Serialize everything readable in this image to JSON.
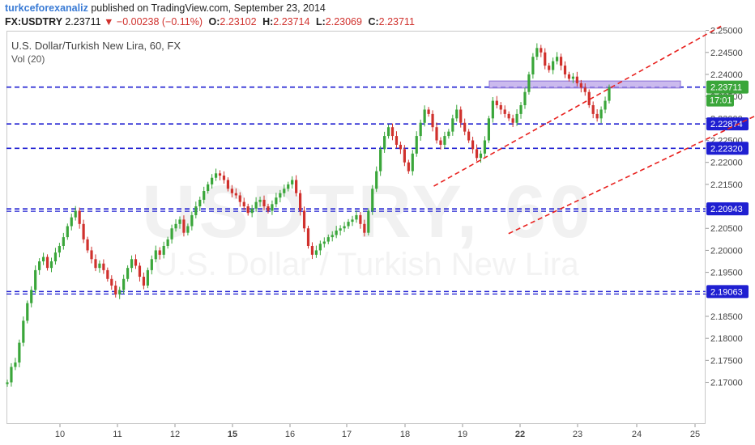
{
  "header": {
    "author": "turkceforexanaliz",
    "published": "published on TradingView.com, September 23, 2014",
    "symbol": "FX:USDTRY",
    "price": "2.23711",
    "change": "▼ −0.00238 (−0.11%)",
    "o_label": "O:",
    "o_value": "2.23102",
    "h_label": "H:",
    "h_value": "2.23714",
    "l_label": "L:",
    "l_value": "2.23069",
    "c_label": "C:",
    "c_value": "2.23711"
  },
  "legend": {
    "title": "U.S. Dollar/Turkish New Lira, 60, FX",
    "volume": "Vol (20)"
  },
  "watermark": {
    "main": "USDTRY, 60",
    "sub": "U.S. Dollar / Turkish New Lira"
  },
  "colors": {
    "up": "#3aa63a",
    "down": "#d0312d",
    "hline": "#1f1fd1",
    "trend": "#e8221f",
    "zone": "#b9a3e8",
    "price_badge": "#3aa63a"
  },
  "chart_data": {
    "type": "candlestick",
    "ylim": [
      2.1655,
      2.2525
    ],
    "y_ticks": [
      "2.17000",
      "2.17500",
      "2.18000",
      "2.18500",
      "2.19000",
      "2.19500",
      "2.20000",
      "2.20500",
      "2.21000",
      "2.21500",
      "2.22000",
      "2.22500",
      "2.23000",
      "2.23500",
      "2.24000",
      "2.24500",
      "2.25000"
    ],
    "x_ticks": [
      "10",
      "11",
      "12",
      "15",
      "16",
      "17",
      "18",
      "19",
      "22",
      "23",
      "24",
      "25"
    ],
    "bold_x_ticks": [
      "15",
      "22"
    ],
    "horizontal_levels": [
      {
        "value": 2.23711,
        "label": "2.23711",
        "badge": "price"
      },
      {
        "value": 2.22874,
        "label": "2.22874",
        "badge": "line"
      },
      {
        "value": 2.2232,
        "label": "2.22320",
        "badge": "line"
      },
      {
        "value": 2.20943,
        "label": "2.20943",
        "badge": "line"
      },
      {
        "value": 2.19063,
        "label": "2.19063",
        "badge": "line"
      }
    ],
    "countdown": "17:01",
    "resistance_zone": {
      "x_from": "19.5",
      "x_to": "23.9",
      "y_from": 2.2369,
      "y_to": 2.2385
    },
    "trend_channel": [
      {
        "from": [
          16.5,
          2.2146
        ],
        "to": [
          21.5,
          2.251
        ]
      },
      {
        "from": [
          17.8,
          2.2038
        ],
        "to": [
          23.6,
          2.24
        ]
      }
    ],
    "projections": [
      {
        "from": [
          23.45,
          2.2369
        ],
        "to": [
          23.75,
          2.2498
        ]
      },
      {
        "from": [
          23.55,
          2.2369
        ],
        "to": [
          24.25,
          2.2234
        ]
      }
    ],
    "candles_close": [
      2.17,
      2.1735,
      2.1745,
      2.179,
      2.184,
      2.188,
      2.191,
      2.1955,
      2.1975,
      2.1985,
      2.196,
      2.1975,
      2.1995,
      2.201,
      2.203,
      2.2055,
      2.2075,
      2.209,
      2.206,
      2.2025,
      2.2,
      2.198,
      2.196,
      2.197,
      2.1955,
      2.1935,
      2.192,
      2.19,
      2.191,
      2.1935,
      2.196,
      2.198,
      2.1965,
      2.194,
      2.192,
      2.1955,
      2.198,
      2.2,
      2.199,
      2.201,
      2.2025,
      2.205,
      2.206,
      2.207,
      2.204,
      2.2055,
      2.208,
      2.21,
      2.2115,
      2.2135,
      2.215,
      2.2165,
      2.2175,
      2.217,
      2.216,
      2.214,
      2.213,
      2.2125,
      2.211,
      2.21,
      2.2085,
      2.2095,
      2.211,
      2.2115,
      2.21,
      2.209,
      2.2105,
      2.212,
      2.213,
      2.214,
      2.215,
      2.216,
      2.213,
      2.209,
      2.205,
      2.201,
      2.199,
      2.2,
      2.2015,
      2.202,
      2.203,
      2.2035,
      2.2045,
      2.205,
      2.2055,
      2.2065,
      2.207,
      2.208,
      2.206,
      2.204,
      2.209,
      2.214,
      2.218,
      2.223,
      2.226,
      2.228,
      2.226,
      2.224,
      2.223,
      2.22,
      2.218,
      2.222,
      2.226,
      2.229,
      2.232,
      2.231,
      2.228,
      2.225,
      2.224,
      2.226,
      2.227,
      2.23,
      2.232,
      2.229,
      2.227,
      2.225,
      2.223,
      2.221,
      2.222,
      2.225,
      2.23,
      2.234,
      2.233,
      2.232,
      2.231,
      2.23,
      2.229,
      2.231,
      2.233,
      2.236,
      2.24,
      2.244,
      2.246,
      2.245,
      2.242,
      2.241,
      2.243,
      2.244,
      2.242,
      2.24,
      2.239,
      2.2395,
      2.238,
      2.237,
      2.236,
      2.233,
      2.231,
      2.23,
      2.232,
      2.234,
      2.2371
    ]
  }
}
